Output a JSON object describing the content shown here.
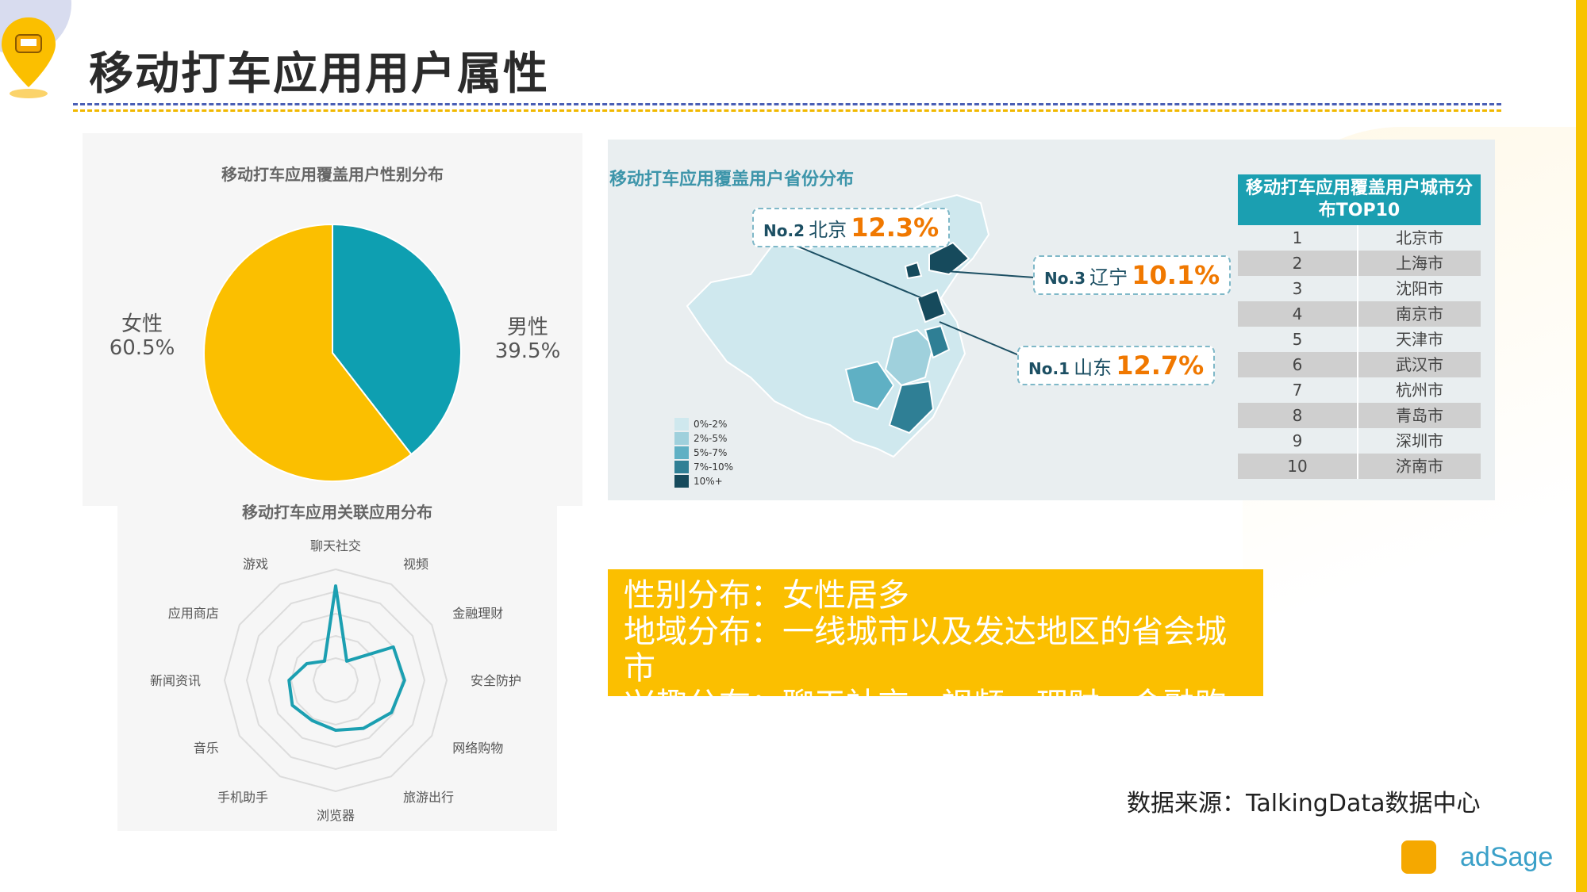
{
  "page": {
    "title": "移动打车应用用户属性",
    "source": "数据来源：TalkingData数据中心",
    "logo_text": "adSage"
  },
  "summary": {
    "lines": [
      "性别分布：女性居多",
      "地域分布：一线城市以及发达地区的省会城市",
      "兴趣分布：聊天社交、视频、理财、金融购物"
    ]
  },
  "colors": {
    "accent_yellow": "#fbbf00",
    "accent_teal": "#1b9fb1",
    "pie_female": "#fbbf00",
    "pie_male": "#0e9fb1",
    "radar_line": "#1b9fb1",
    "callout_pct": "#f07800"
  },
  "chart_data": [
    {
      "type": "pie",
      "title": "移动打车应用覆盖用户性别分布",
      "slices": [
        {
          "label": "男性",
          "value": 39.5,
          "display": "39.5%"
        },
        {
          "label": "女性",
          "value": 60.5,
          "display": "60.5%"
        }
      ]
    },
    {
      "type": "radar",
      "title": "移动打车应用关联应用分布",
      "axes": [
        "聊天社交",
        "视频",
        "金融理财",
        "安全防护",
        "网络购物",
        "旅游出行",
        "浏览器",
        "手机助手",
        "音乐",
        "新闻资讯",
        "应用商店",
        "游戏"
      ],
      "values": [
        0.85,
        0.2,
        0.6,
        0.62,
        0.58,
        0.5,
        0.45,
        0.42,
        0.45,
        0.42,
        0.3,
        0.2
      ],
      "rings": 5
    },
    {
      "type": "map",
      "title": "移动打车应用覆盖用户省份分布",
      "legend": [
        "0%-2%",
        "2%-5%",
        "5%-7%",
        "7%-10%",
        "10%+"
      ],
      "legend_colors": [
        "#cfe8ee",
        "#9fd0dc",
        "#5fb0c4",
        "#2f7f95",
        "#164a5c"
      ],
      "callouts": [
        {
          "rank": "No.2",
          "province": "北京",
          "value": 12.3,
          "display": "12.3%"
        },
        {
          "rank": "No.3",
          "province": "辽宁",
          "value": 10.1,
          "display": "10.1%"
        },
        {
          "rank": "No.1",
          "province": "山东",
          "value": 12.7,
          "display": "12.7%"
        }
      ]
    },
    {
      "type": "table",
      "title": "移动打车应用覆盖用户城市分布TOP10",
      "columns": [
        "rank",
        "city"
      ],
      "rows": [
        [
          "1",
          "北京市"
        ],
        [
          "2",
          "上海市"
        ],
        [
          "3",
          "沈阳市"
        ],
        [
          "4",
          "南京市"
        ],
        [
          "5",
          "天津市"
        ],
        [
          "6",
          "武汉市"
        ],
        [
          "7",
          "杭州市"
        ],
        [
          "8",
          "青岛市"
        ],
        [
          "9",
          "深圳市"
        ],
        [
          "10",
          "济南市"
        ]
      ]
    }
  ]
}
